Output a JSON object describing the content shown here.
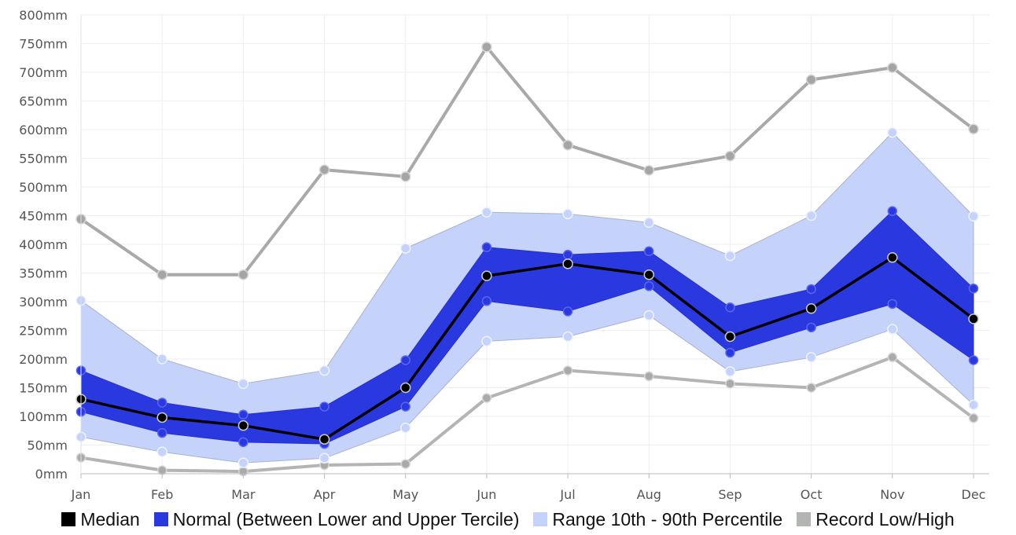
{
  "chart_data": {
    "type": "area",
    "categories": [
      "Jan",
      "Feb",
      "Mar",
      "Apr",
      "May",
      "Jun",
      "Jul",
      "Aug",
      "Sep",
      "Oct",
      "Nov",
      "Dec"
    ],
    "unit": "mm",
    "ylim": [
      0,
      800
    ],
    "yticks": [
      "0mm",
      "50mm",
      "100mm",
      "150mm",
      "200mm",
      "250mm",
      "300mm",
      "350mm",
      "400mm",
      "450mm",
      "500mm",
      "550mm",
      "600mm",
      "650mm",
      "700mm",
      "750mm",
      "800mm"
    ],
    "grid": true,
    "legend_position": "bottom",
    "series": [
      {
        "name": "Median",
        "color": "#000000",
        "values": [
          130,
          98,
          84,
          60,
          150,
          345,
          366,
          347,
          239,
          288,
          377,
          270
        ]
      },
      {
        "name": "Normal (Between Lower and Upper Tercile)",
        "color": "#2a38e0",
        "lower": [
          108,
          71,
          55,
          52,
          117,
          301,
          283,
          327,
          211,
          255,
          296,
          198
        ],
        "upper": [
          180,
          124,
          103,
          117,
          198,
          395,
          382,
          388,
          290,
          322,
          458,
          323
        ]
      },
      {
        "name": "Range 10th - 90th Percentile",
        "color": "#c5d2fa",
        "lower": [
          64,
          38,
          19,
          27,
          80,
          231,
          239,
          276,
          178,
          203,
          252,
          120
        ],
        "upper": [
          302,
          200,
          157,
          180,
          393,
          456,
          453,
          438,
          380,
          450,
          595,
          449
        ]
      },
      {
        "name": "Record Low/High",
        "color": "#b3b5b3",
        "lower": [
          28,
          6,
          4,
          15,
          17,
          132,
          180,
          170,
          157,
          150,
          203,
          97
        ],
        "upper": [
          444,
          347,
          347,
          530,
          518,
          744,
          573,
          529,
          554,
          687,
          708,
          601
        ]
      }
    ]
  }
}
